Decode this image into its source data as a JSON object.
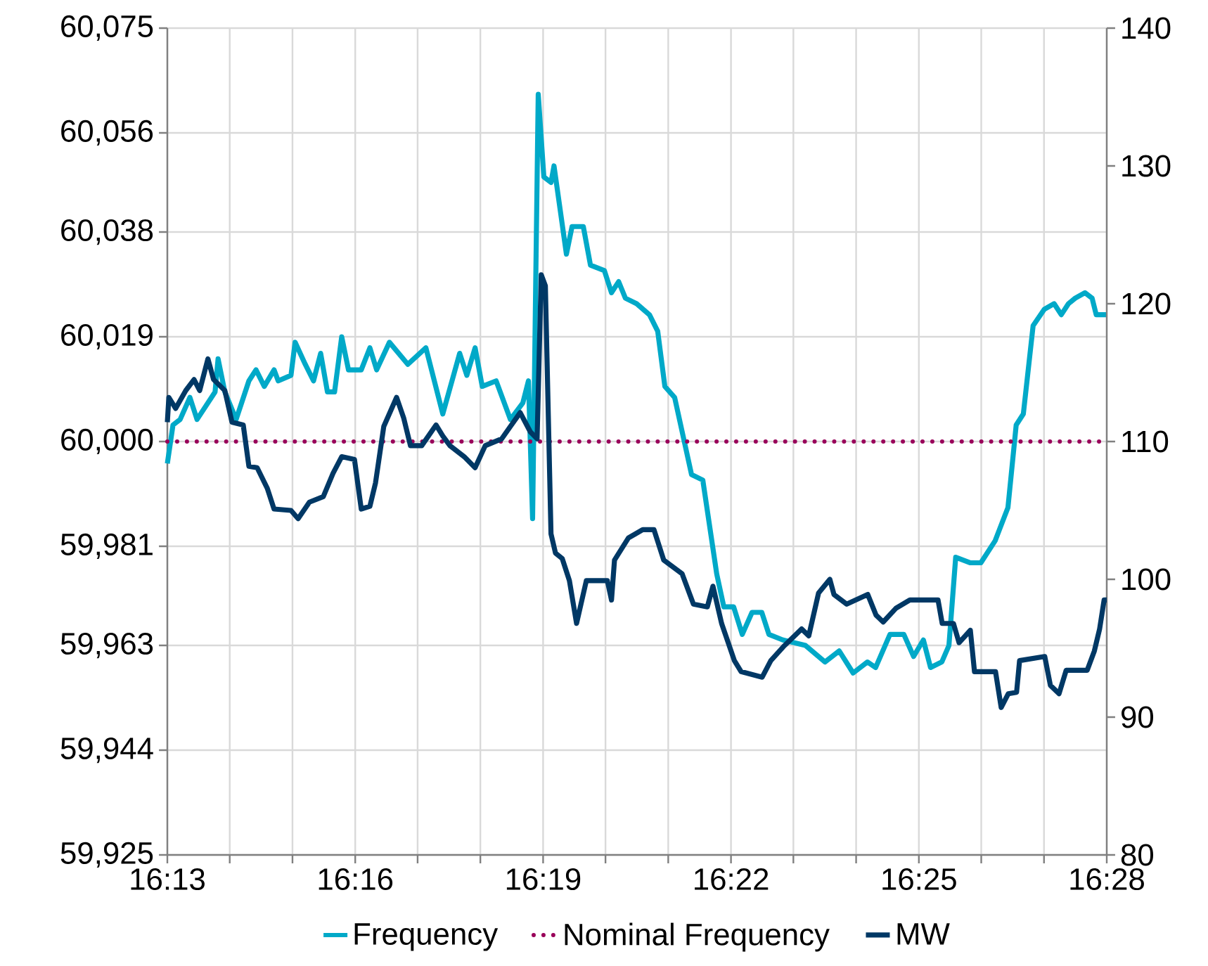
{
  "chart_data": {
    "type": "line",
    "grid": true,
    "legend": "bottom",
    "marker": "none",
    "xlim": [
      16.2167,
      16.4667
    ],
    "xticks": [
      {
        "value": 16.2167,
        "label": "16:13"
      },
      {
        "value": 16.2333,
        "label": null
      },
      {
        "value": 16.25,
        "label": null
      },
      {
        "value": 16.2667,
        "label": "16:16"
      },
      {
        "value": 16.2833,
        "label": null
      },
      {
        "value": 16.3,
        "label": null
      },
      {
        "value": 16.3167,
        "label": "16:19"
      },
      {
        "value": 16.3333,
        "label": null
      },
      {
        "value": 16.35,
        "label": null
      },
      {
        "value": 16.3667,
        "label": "16:22"
      },
      {
        "value": 16.3833,
        "label": null
      },
      {
        "value": 16.4,
        "label": null
      },
      {
        "value": 16.4167,
        "label": "16:25"
      },
      {
        "value": 16.4333,
        "label": null
      },
      {
        "value": 16.45,
        "label": null
      },
      {
        "value": 16.4667,
        "label": "16:28"
      }
    ],
    "ylim": [
      59925,
      60075
    ],
    "yticks": [
      {
        "value": 59925,
        "label": "59,925"
      },
      {
        "value": 59944,
        "label": "59,944"
      },
      {
        "value": 59963,
        "label": "59,963"
      },
      {
        "value": 59981,
        "label": "59,981"
      },
      {
        "value": 60000,
        "label": "60,000"
      },
      {
        "value": 60019,
        "label": "60,019"
      },
      {
        "value": 60038,
        "label": "60,038"
      },
      {
        "value": 60056,
        "label": "60,056"
      },
      {
        "value": 60075,
        "label": "60,075"
      }
    ],
    "y2lim": [
      80,
      140
    ],
    "y2ticks": [
      80,
      90,
      100,
      110,
      120,
      130,
      140
    ],
    "series": [
      {
        "name": "Frequency",
        "color": "#00a9c8",
        "line_style": "solid",
        "x": [
          16.2167,
          16.2182,
          16.2201,
          16.2227,
          16.2246,
          16.2294,
          16.2302,
          16.232,
          16.235,
          16.2384,
          16.2403,
          16.2425,
          16.2451,
          16.2462,
          16.2496,
          16.2507,
          16.2534,
          16.2556,
          16.2575,
          16.2593,
          16.2612,
          16.2631,
          16.2649,
          16.2683,
          16.2706,
          16.2724,
          16.2758,
          16.2807,
          16.2855,
          16.29,
          16.2945,
          16.2964,
          16.2986,
          16.3005,
          16.3042,
          16.308,
          16.3113,
          16.3128,
          16.3139,
          16.3154,
          16.3169,
          16.3188,
          16.3196,
          16.3229,
          16.3244,
          16.3274,
          16.3293,
          16.333,
          16.3349,
          16.3368,
          16.3386,
          16.3416,
          16.345,
          16.3472,
          16.3491,
          16.3517,
          16.3562,
          16.3592,
          16.3629,
          16.3648,
          16.3674,
          16.3697,
          16.3723,
          16.3749,
          16.3768,
          16.3805,
          16.3865,
          16.3917,
          16.3955,
          16.3992,
          16.403,
          16.4052,
          16.409,
          16.4127,
          16.4153,
          16.4179,
          16.4198,
          16.4228,
          16.4247,
          16.4265,
          16.4303,
          16.4332,
          16.437,
          16.4404,
          16.4426,
          16.4445,
          16.4471,
          16.4501,
          16.4527,
          16.4546,
          16.4565,
          16.4583,
          16.4609,
          16.4628,
          16.4639,
          16.4667
        ],
        "values": [
          59996,
          60003,
          60004,
          60008,
          60004,
          60009,
          60015,
          60009,
          60004,
          60011,
          60013,
          60010,
          60013,
          60011,
          60012,
          60018,
          60014,
          60011,
          60016,
          60009,
          60009,
          60019,
          60013,
          60013,
          60017,
          60013,
          60018,
          60014,
          60017,
          60005,
          60016,
          60012,
          60017,
          60010,
          60011,
          60004,
          60007,
          60011,
          59986,
          60063,
          60048,
          60047,
          60050,
          60034,
          60039,
          60039,
          60032,
          60031,
          60027,
          60029,
          60026,
          60025,
          60023,
          60020,
          60010,
          60008,
          59994,
          59993,
          59976,
          59970,
          59970,
          59965,
          59969,
          59969,
          59965,
          59964,
          59963,
          59960,
          59962,
          59958,
          59960,
          59959,
          59965,
          59965,
          59961,
          59964,
          59959,
          59960,
          59963,
          59979,
          59978,
          59978,
          59982,
          59988,
          60003,
          60005,
          60021,
          60024,
          60025,
          60023,
          60025,
          60026,
          60027,
          60026,
          60023,
          60023
        ]
      },
      {
        "name": "Nominal Frequency",
        "color": "#99005a",
        "line_style": "dotted",
        "x": [
          16.2167,
          16.4667
        ],
        "values": [
          60000,
          60000
        ]
      },
      {
        "name": "MW",
        "color": "#003865",
        "line_style": "solid",
        "axis": "y2",
        "x": [
          16.2167,
          16.2171,
          16.2189,
          16.2216,
          16.2238,
          16.2253,
          16.2275,
          16.229,
          16.232,
          16.2339,
          16.2369,
          16.2384,
          16.2406,
          16.2433,
          16.2451,
          16.2496,
          16.2515,
          16.2545,
          16.2582,
          16.2608,
          16.2631,
          16.2665,
          16.2683,
          16.2706,
          16.2721,
          16.2743,
          16.2777,
          16.2796,
          16.2814,
          16.2844,
          16.2882,
          16.29,
          16.2919,
          16.2957,
          16.2986,
          16.3013,
          16.3057,
          16.308,
          16.3106,
          16.3133,
          16.3151,
          16.3162,
          16.3173,
          16.3188,
          16.32,
          16.3218,
          16.3237,
          16.3256,
          16.3282,
          16.3338,
          16.3349,
          16.3357,
          16.3394,
          16.3432,
          16.3462,
          16.3488,
          16.3537,
          16.3567,
          16.3604,
          16.3619,
          16.3642,
          16.3676,
          16.3694,
          16.375,
          16.3773,
          16.3806,
          16.3855,
          16.3874,
          16.39,
          16.393,
          16.3941,
          16.3975,
          16.4031,
          16.4053,
          16.4072,
          16.4106,
          16.4143,
          16.4218,
          16.4229,
          16.4259,
          16.4274,
          16.4304,
          16.4315,
          16.4371,
          16.4386,
          16.4405,
          16.4427,
          16.4435,
          16.4502,
          16.4517,
          16.454,
          16.4559,
          16.4615,
          16.4634,
          16.4648,
          16.466,
          16.4667
        ],
        "values": [
          111.4,
          113.2,
          112.4,
          113.7,
          114.5,
          113.7,
          116.0,
          114.5,
          113.7,
          111.4,
          111.2,
          108.2,
          108.1,
          106.6,
          105.1,
          105.0,
          104.4,
          105.6,
          106.0,
          107.7,
          108.9,
          108.7,
          105.1,
          105.3,
          107.0,
          111.1,
          113.2,
          111.7,
          109.7,
          109.7,
          111.2,
          110.4,
          109.7,
          108.9,
          108.1,
          109.7,
          110.2,
          111.1,
          112.1,
          110.7,
          110.2,
          122.1,
          121.3,
          103.3,
          101.9,
          101.5,
          99.9,
          96.8,
          99.9,
          99.9,
          98.5,
          101.4,
          103.0,
          103.6,
          103.6,
          101.4,
          100.4,
          98.2,
          98.0,
          99.5,
          96.8,
          94.1,
          93.3,
          92.9,
          94.1,
          95.1,
          96.4,
          95.9,
          99.0,
          100.0,
          98.9,
          98.2,
          98.9,
          97.4,
          96.9,
          97.9,
          98.5,
          98.5,
          96.8,
          96.8,
          95.4,
          96.3,
          93.3,
          93.3,
          90.7,
          91.7,
          91.8,
          94.1,
          94.4,
          92.3,
          91.7,
          93.4,
          93.4,
          94.8,
          96.4,
          98.5,
          98.5
        ]
      }
    ]
  }
}
